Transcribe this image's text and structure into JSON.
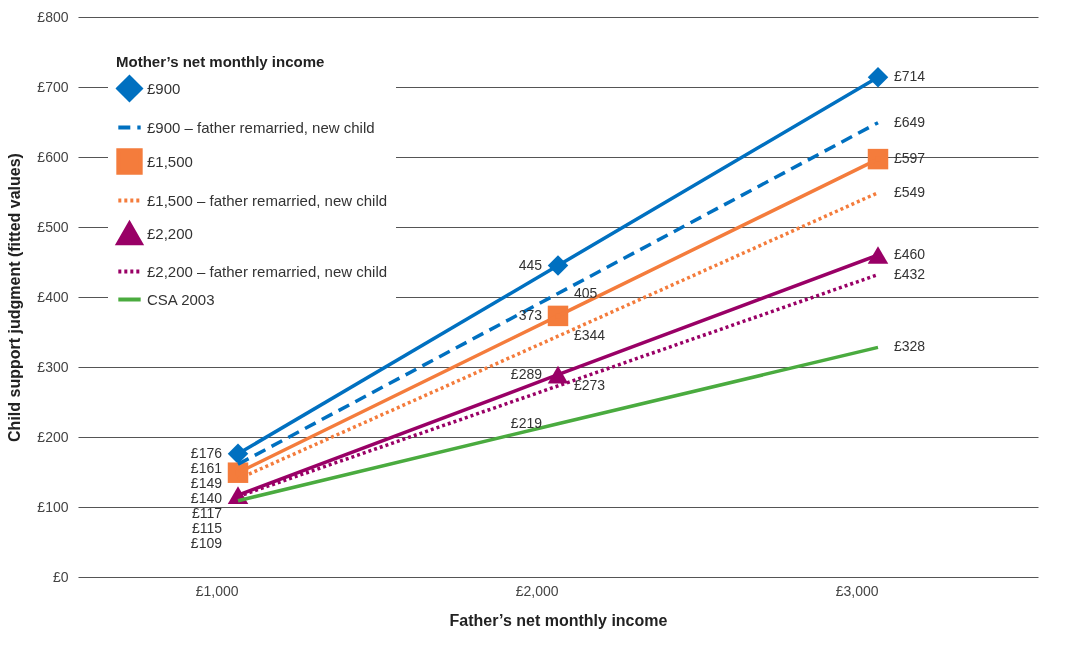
{
  "chart_data": {
    "type": "line",
    "xlabel": "Father’s net monthly income",
    "ylabel": "Child support judgment (fitted values)",
    "legend_title": "Mother’s net monthly income",
    "categories": [
      "£1,000",
      "£2,000",
      "£3,000"
    ],
    "ylim": [
      0,
      800
    ],
    "yticks": [
      {
        "value": 0,
        "label": "£0"
      },
      {
        "value": 100,
        "label": "£100"
      },
      {
        "value": 200,
        "label": "£200"
      },
      {
        "value": 300,
        "label": "£300"
      },
      {
        "value": 400,
        "label": "£400"
      },
      {
        "value": 500,
        "label": "£500"
      },
      {
        "value": 600,
        "label": "£600"
      },
      {
        "value": 700,
        "label": "£700"
      },
      {
        "value": 800,
        "label": "£800"
      }
    ],
    "grid": "y",
    "legend": "top left",
    "series": [
      {
        "name": "£900",
        "color": "#0070c0",
        "marker": "diamond",
        "line_style": "solid",
        "values": [
          176,
          445,
          714
        ],
        "value_labels": [
          "£176",
          "445",
          "£714"
        ]
      },
      {
        "name": "£900 – father remarried, new child",
        "color": "#0070c0",
        "marker": "none",
        "line_style": "dashed",
        "values": [
          161,
          405,
          649
        ],
        "value_labels": [
          "£161",
          "405",
          "£649"
        ]
      },
      {
        "name": "£1,500",
        "color": "#f47c3c",
        "marker": "square",
        "line_style": "solid",
        "values": [
          149,
          373,
          597
        ],
        "value_labels": [
          "£149",
          "373",
          "£597"
        ]
      },
      {
        "name": "£1,500 – father remarried, new child",
        "color": "#f47c3c",
        "marker": "none",
        "line_style": "dotted",
        "values": [
          140,
          344,
          549
        ],
        "value_labels": [
          "£140",
          "£344",
          "£549"
        ]
      },
      {
        "name": "£2,200",
        "color": "#990066",
        "marker": "triangle",
        "line_style": "solid",
        "values": [
          117,
          289,
          460
        ],
        "value_labels": [
          "£117",
          "£289",
          "£460"
        ]
      },
      {
        "name": "£2,200 – father remarried, new child",
        "color": "#990066",
        "marker": "none",
        "line_style": "dotted",
        "values": [
          115,
          273,
          432
        ],
        "value_labels": [
          "£115",
          "£273",
          "£432"
        ]
      },
      {
        "name": "CSA 2003",
        "color": "#4aab3f",
        "marker": "none",
        "line_style": "solid",
        "values": [
          109,
          219,
          328
        ],
        "value_labels": [
          "£109",
          "£219",
          "£328"
        ]
      }
    ]
  }
}
